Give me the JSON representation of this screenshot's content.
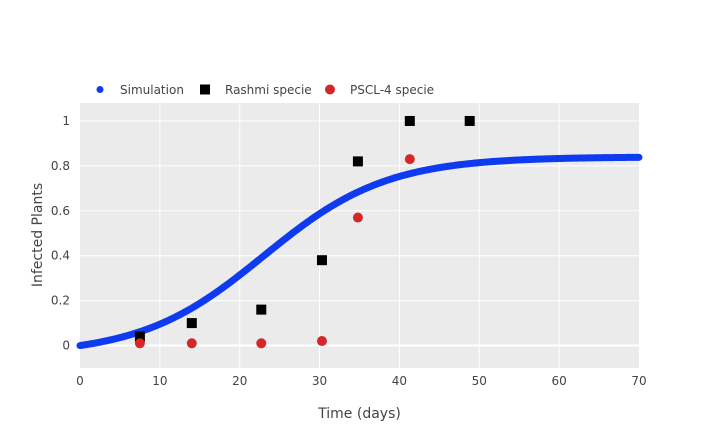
{
  "chart_data": {
    "type": "scatter",
    "title": "",
    "xlabel": "Time (days)",
    "ylabel": "Infected Plants",
    "xlim": [
      0,
      70
    ],
    "ylim": [
      -0.1,
      1.08
    ],
    "x_ticks": [
      0,
      10,
      20,
      30,
      40,
      50,
      60,
      70
    ],
    "y_ticks": [
      0,
      0.2,
      0.4,
      0.6,
      0.8,
      1
    ],
    "grid": true,
    "legend_position": "top-left",
    "simulation_curve": {
      "asymptote": 0.84,
      "midpoint": 23,
      "steepness": 0.13
    },
    "series": [
      {
        "name": "Simulation",
        "marker": "circle-line",
        "color": "#0f3bf0"
      },
      {
        "name": "Rashmi specie",
        "marker": "square",
        "color": "#000000",
        "x": [
          7.5,
          14,
          22.7,
          30.3,
          34.8,
          41.3,
          48.8
        ],
        "y": [
          0.04,
          0.1,
          0.16,
          0.38,
          0.82,
          1.0,
          1.0
        ]
      },
      {
        "name": "PSCL-4 specie",
        "marker": "circle",
        "color": "#d62728",
        "x": [
          7.5,
          14,
          22.7,
          30.3,
          34.8,
          41.3
        ],
        "y": [
          0.01,
          0.01,
          0.01,
          0.02,
          0.57,
          0.83
        ]
      }
    ]
  }
}
